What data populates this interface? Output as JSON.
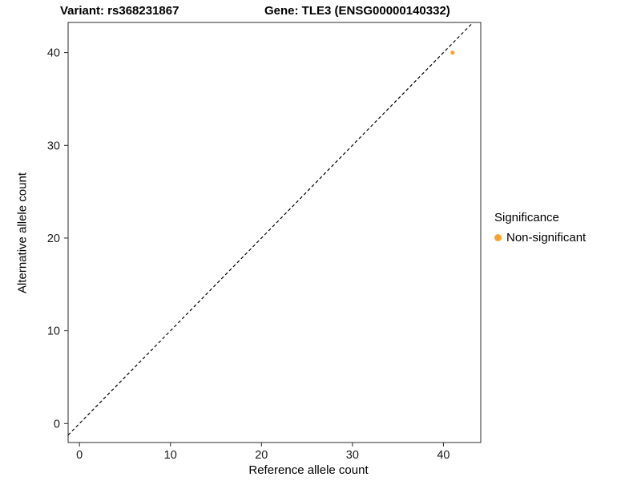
{
  "titles": {
    "left": "Variant: rs368231867",
    "right": "Gene: TLE3 (ENSG00000140332)"
  },
  "chart_data": {
    "type": "scatter",
    "title_left": "Variant: rs368231867",
    "title_right": "Gene: TLE3 (ENSG00000140332)",
    "xlabel": "Reference allele count",
    "ylabel": "Alternative allele count",
    "xlim": [
      -1.25,
      44.1
    ],
    "ylim": [
      -2.05,
      43.25
    ],
    "xticks": [
      "0",
      "10",
      "20",
      "30",
      "40"
    ],
    "yticks": [
      "0",
      "10",
      "20",
      "30",
      "40"
    ],
    "xtick_values": [
      0,
      10,
      20,
      30,
      40
    ],
    "ytick_values": [
      0,
      10,
      20,
      30,
      40
    ],
    "grid": false,
    "points": [
      {
        "x": 41,
        "y": 40,
        "series": "Non-significant"
      }
    ],
    "identity_line": {
      "type": "dashed",
      "slope": 1,
      "intercept": 0,
      "color": "#000000"
    },
    "legend": {
      "title": "Significance",
      "position": "right",
      "entries": [
        {
          "label": "Non-significant",
          "color": "#F8A42C"
        }
      ]
    }
  },
  "colors": {
    "point": "#F8A42C",
    "panel_border": "#2b2b2b",
    "tick": "#2b2b2b",
    "background": "#FFFFFF"
  }
}
